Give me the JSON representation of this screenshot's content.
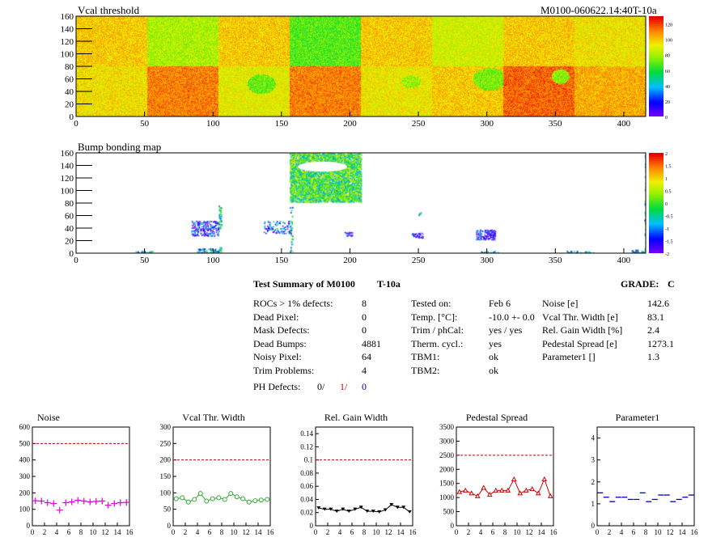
{
  "header": {
    "vcal_title": "Vcal threshold",
    "module_id": "M0100-060622.14:40T-10a",
    "bump_title": "Bump bonding map"
  },
  "summary": {
    "title": "Test Summary of M0100",
    "temp_label": "T-10a",
    "grade_label": "GRADE:",
    "grade": "C",
    "left": [
      {
        "label": "ROCs > 1% defects:",
        "value": "8"
      },
      {
        "label": "Dead Pixel:",
        "value": "0"
      },
      {
        "label": "Mask Defects:",
        "value": "0"
      },
      {
        "label": "Dead Bumps:",
        "value": "4881"
      },
      {
        "label": "Noisy Pixel:",
        "value": "64"
      },
      {
        "label": "Trim Problems:",
        "value": "4"
      }
    ],
    "ph_defects": {
      "label": "PH Defects:",
      "v0": "0/",
      "v1": "1/",
      "v2": "0"
    },
    "middle": [
      {
        "label": "Tested on:",
        "value": "Feb 6"
      },
      {
        "label": "Temp. [°C]:",
        "value": "-10.0 +- 0.0"
      },
      {
        "label": "Trim / phCal:",
        "value": "yes / yes"
      },
      {
        "label": "Therm. cycl.:",
        "value": "yes"
      },
      {
        "label": "TBM1:",
        "value": "ok"
      },
      {
        "label": "TBM2:",
        "value": "ok"
      }
    ],
    "right": [
      {
        "label": "Noise [e]",
        "value": "142.6"
      },
      {
        "label": "Vcal Thr. Width [e]",
        "value": "83.1"
      },
      {
        "label": "Rel. Gain Width [%]",
        "value": "2.4"
      },
      {
        "label": "Pedestal Spread [e]",
        "value": "1273.1"
      },
      {
        "label": "Parameter1 []",
        "value": "1.3"
      }
    ]
  },
  "colors": {
    "magenta": "#e000e0",
    "green": "#2ea82e",
    "black": "#000000",
    "red": "#d00000",
    "blue": "#0000c0",
    "dashed": "#c00000"
  },
  "chart_data": [
    {
      "type": "heatmap",
      "title": "Vcal threshold",
      "xlim": [
        0,
        416
      ],
      "ylim": [
        0,
        160
      ],
      "xticks": [
        0,
        50,
        100,
        150,
        200,
        250,
        300,
        350,
        400
      ],
      "yticks": [
        0,
        20,
        40,
        60,
        80,
        100,
        120,
        140,
        160
      ],
      "zticks": [
        "0",
        "20",
        "40",
        "60",
        "80",
        "100",
        "120"
      ],
      "zlim": [
        0,
        130
      ],
      "roc_mean_top": [
        100,
        82,
        100,
        70,
        100,
        88,
        100,
        95
      ],
      "roc_mean_bottom": [
        96,
        112,
        92,
        112,
        94,
        100,
        116,
        105
      ]
    },
    {
      "type": "heatmap",
      "title": "Bump bonding map",
      "xlim": [
        0,
        416
      ],
      "ylim": [
        0,
        160
      ],
      "xticks": [
        0,
        50,
        100,
        150,
        200,
        250,
        300,
        350,
        400
      ],
      "yticks": [
        0,
        20,
        40,
        60,
        80,
        100,
        120,
        140,
        160
      ],
      "zticks": [
        "2",
        "1.5",
        "1",
        "0.5",
        "0",
        "-0.5",
        "-1",
        "-1.5",
        "-2"
      ],
      "zlim": [
        -2,
        2
      ]
    },
    {
      "type": "scatter",
      "title": "Noise",
      "x": [
        0,
        1,
        2,
        3,
        4,
        5,
        6,
        7,
        8,
        9,
        10,
        11,
        12,
        13,
        14,
        15
      ],
      "values": [
        152,
        150,
        140,
        135,
        95,
        140,
        145,
        155,
        150,
        145,
        148,
        150,
        125,
        135,
        140,
        142
      ],
      "ylim": [
        0,
        600
      ],
      "yticks": [
        "0",
        "100",
        "200",
        "300",
        "400",
        "500",
        "600"
      ],
      "threshold": 500,
      "color": "magenta",
      "marker": "cross"
    },
    {
      "type": "line",
      "title": "Vcal Thr. Width",
      "x": [
        0,
        1,
        2,
        3,
        4,
        5,
        6,
        7,
        8,
        9,
        10,
        11,
        12,
        13,
        14,
        15
      ],
      "values": [
        82,
        85,
        72,
        80,
        98,
        75,
        82,
        85,
        80,
        98,
        88,
        82,
        72,
        76,
        78,
        80
      ],
      "ylim": [
        0,
        300
      ],
      "yticks": [
        "0",
        "50",
        "100",
        "150",
        "200",
        "250",
        "300"
      ],
      "threshold": 200,
      "color": "green",
      "marker": "circle"
    },
    {
      "type": "line",
      "title": "Rel. Gain Width",
      "x": [
        0,
        1,
        2,
        3,
        4,
        5,
        6,
        7,
        8,
        9,
        10,
        11,
        12,
        13,
        14,
        15
      ],
      "values": [
        0.027,
        0.025,
        0.025,
        0.022,
        0.025,
        0.022,
        0.025,
        0.028,
        0.022,
        0.022,
        0.021,
        0.024,
        0.032,
        0.028,
        0.028,
        0.021
      ],
      "ylim": [
        0,
        0.15
      ],
      "yticks": [
        "0",
        "0.02",
        "0.04",
        "0.06",
        "0.08",
        "0.1",
        "0.12",
        "0.14"
      ],
      "threshold": 0.1,
      "color": "black",
      "marker": "triangle-down"
    },
    {
      "type": "line",
      "title": "Pedestal Spread",
      "x": [
        0,
        1,
        2,
        3,
        4,
        5,
        6,
        7,
        8,
        9,
        10,
        11,
        12,
        13,
        14,
        15
      ],
      "values": [
        1200,
        1250,
        1150,
        1050,
        1350,
        1100,
        1250,
        1250,
        1250,
        1650,
        1150,
        1250,
        1300,
        1150,
        1650,
        1050
      ],
      "ylim": [
        0,
        3500
      ],
      "yticks": [
        "0",
        "500",
        "1000",
        "1500",
        "2000",
        "2500",
        "3000",
        "3500"
      ],
      "threshold": 2500,
      "color": "red",
      "marker": "triangle-up"
    },
    {
      "type": "scatter",
      "title": "Parameter1",
      "x": [
        0,
        1,
        2,
        3,
        4,
        5,
        6,
        7,
        8,
        9,
        10,
        11,
        12,
        13,
        14,
        15
      ],
      "values": [
        1.5,
        1.3,
        1.1,
        1.3,
        1.3,
        1.2,
        1.2,
        1.5,
        1.1,
        1.2,
        1.4,
        1.4,
        1.1,
        1.2,
        1.3,
        1.4
      ],
      "ylim": [
        0,
        4.5
      ],
      "yticks": [
        "0",
        "1",
        "2",
        "3",
        "4"
      ],
      "color": "blue",
      "marker": "hbar"
    }
  ],
  "small_xticks": [
    "0",
    "2",
    "4",
    "6",
    "8",
    "10",
    "12",
    "14",
    "16"
  ]
}
